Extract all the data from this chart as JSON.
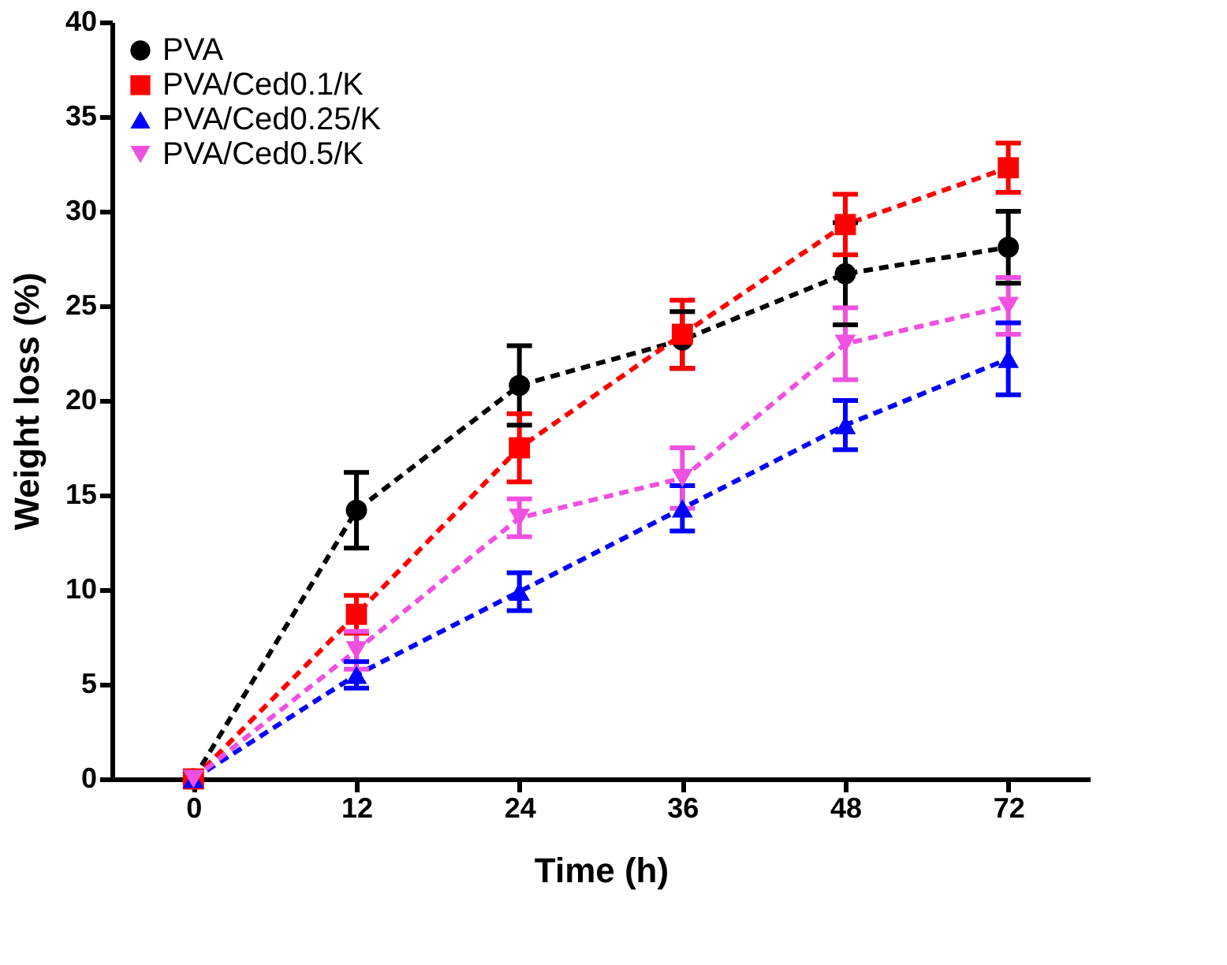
{
  "chart_data": {
    "type": "line",
    "xlabel": "Time (h)",
    "ylabel": "Weight loss (%)",
    "categories": [
      "0",
      "12",
      "24",
      "36",
      "48",
      "72"
    ],
    "ylim": [
      0,
      40
    ],
    "yticks": [
      0,
      5,
      10,
      15,
      20,
      25,
      30,
      35,
      40
    ],
    "grid": false,
    "legend": "top left",
    "line_style": "dashed",
    "series": [
      {
        "name": "PVA",
        "color": "#000000",
        "marker": "circle",
        "values": [
          0,
          14.2,
          20.8,
          23.2,
          26.7,
          28.1
        ],
        "errors": [
          null,
          2.0,
          2.1,
          1.5,
          2.7,
          1.9
        ]
      },
      {
        "name": "PVA/Ced0.1/K",
        "color": "#ff0000",
        "marker": "square",
        "values": [
          0,
          8.7,
          17.5,
          23.5,
          29.3,
          32.3
        ],
        "errors": [
          null,
          1.0,
          1.8,
          1.8,
          1.6,
          1.3
        ]
      },
      {
        "name": "PVA/Ced0.25/K",
        "color": "#0000ff",
        "marker": "triangle",
        "values": [
          0,
          5.5,
          9.9,
          14.3,
          18.7,
          22.2
        ],
        "errors": [
          null,
          0.7,
          1.0,
          1.2,
          1.3,
          1.9
        ]
      },
      {
        "name": "PVA/Ced0.5/K",
        "color": "#f050e0",
        "marker": "triangle-down",
        "values": [
          0,
          6.8,
          13.8,
          15.9,
          23.0,
          25.0
        ],
        "errors": [
          null,
          1.0,
          1.0,
          1.6,
          1.9,
          1.5
        ]
      }
    ]
  }
}
